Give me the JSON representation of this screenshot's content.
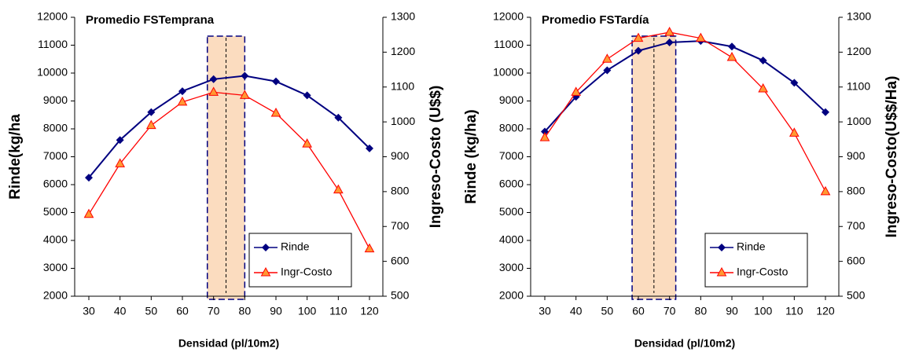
{
  "chart_data": [
    {
      "type": "line",
      "title": "Promedio FSTemprana",
      "x_label": "Densidad (pl/10m2)",
      "y_label": "Rinde(kg/ha",
      "y2_label": "Ingreso-Costo (U$$)",
      "x": [
        30,
        40,
        50,
        60,
        70,
        80,
        90,
        100,
        110,
        120
      ],
      "series": [
        {
          "name": "Rinde",
          "color": "#000080",
          "marker": "diamond",
          "values": [
            6250,
            7600,
            8600,
            9350,
            9780,
            9900,
            9700,
            9200,
            8400,
            7300
          ]
        },
        {
          "name": "Ingr-Costo",
          "color": "#ff0000",
          "marker": "triangle",
          "axis": "y2",
          "values": [
            735,
            880,
            990,
            1057,
            1085,
            1076,
            1025,
            937,
            805,
            636
          ]
        }
      ],
      "xlim": [
        30,
        120
      ],
      "xticks": [
        30,
        40,
        50,
        60,
        70,
        80,
        90,
        100,
        110,
        120
      ],
      "ylim": [
        2000,
        12000
      ],
      "yticks": [
        2000,
        3000,
        4000,
        5000,
        6000,
        7000,
        8000,
        9000,
        10000,
        11000,
        12000
      ],
      "y2lim": [
        500,
        1300
      ],
      "y2ticks": [
        500,
        600,
        700,
        800,
        900,
        1000,
        1100,
        1200,
        1300
      ],
      "highlight_x": [
        68,
        80
      ],
      "highlight_mid": 74,
      "legend": "lower right",
      "grid": false
    },
    {
      "type": "line",
      "title": "Promedio FSTardía",
      "x_label": "Densidad (pl/10m2)",
      "y_label": "Rinde (kg/ha)",
      "y2_label": "Ingreso-Costo(U$$/Ha)",
      "x": [
        30,
        40,
        50,
        60,
        70,
        80,
        90,
        100,
        110,
        120
      ],
      "series": [
        {
          "name": "Rinde",
          "color": "#000080",
          "marker": "diamond",
          "values": [
            7900,
            9150,
            10100,
            10800,
            11100,
            11150,
            10950,
            10450,
            9650,
            8600
          ]
        },
        {
          "name": "Ingr-Costo",
          "color": "#ff0000",
          "marker": "triangle",
          "axis": "y2",
          "values": [
            955,
            1085,
            1180,
            1240,
            1257,
            1240,
            1185,
            1095,
            968,
            800
          ]
        }
      ],
      "xlim": [
        30,
        120
      ],
      "xticks": [
        30,
        40,
        50,
        60,
        70,
        80,
        90,
        100,
        110,
        120
      ],
      "ylim": [
        2000,
        12000
      ],
      "yticks": [
        2000,
        3000,
        4000,
        5000,
        6000,
        7000,
        8000,
        9000,
        10000,
        11000,
        12000
      ],
      "y2lim": [
        500,
        1300
      ],
      "y2ticks": [
        500,
        600,
        700,
        800,
        900,
        1000,
        1100,
        1200,
        1300
      ],
      "highlight_x": [
        58,
        72
      ],
      "highlight_mid": 65,
      "legend": "lower right",
      "grid": false
    }
  ]
}
